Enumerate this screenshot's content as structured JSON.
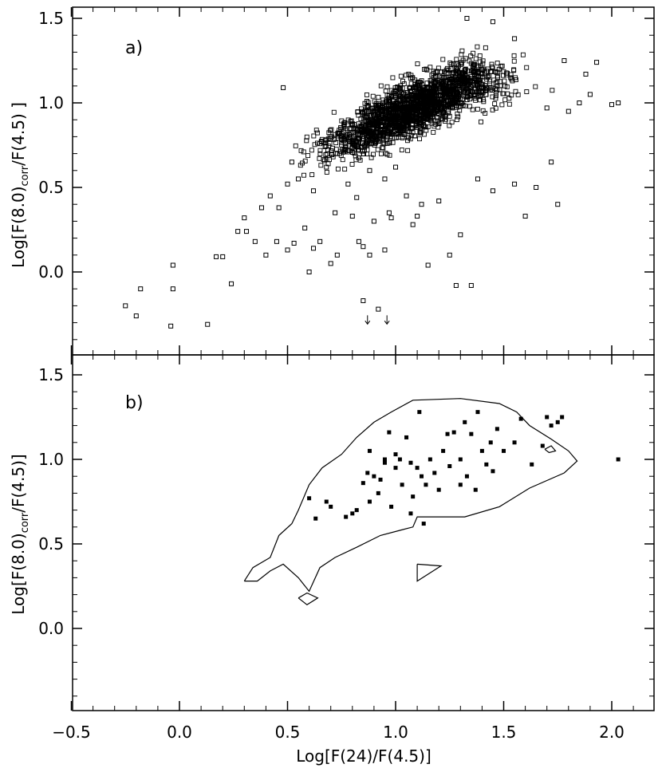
{
  "chart_data": [
    {
      "type": "scatter",
      "panel": "a)",
      "ylabel_main": "Log[F(8.0)",
      "ylabel_sub": "corr",
      "ylabel_rest": "/F(4.5) ]",
      "xlim": [
        -0.5,
        2.2
      ],
      "ylim": [
        -0.48,
        1.58
      ],
      "xticks": [
        -0.5,
        0.0,
        0.5,
        1.0,
        1.5,
        2.0
      ],
      "xtick_labels": [
        "-0.5",
        "0.0",
        "0.5",
        "1.0",
        "1.5",
        "2.0"
      ],
      "yticks": [
        0.0,
        0.5,
        1.0,
        1.5
      ],
      "ytick_labels": [
        "0.0",
        "0.5",
        "1.0",
        "1.5"
      ],
      "marker": "open-square",
      "dense_cloud": {
        "center": [
          1.15,
          1.05
        ],
        "note": "several thousand overlapping open squares"
      },
      "points": [
        [
          -0.25,
          -0.2
        ],
        [
          -0.2,
          -0.26
        ],
        [
          -0.18,
          -0.1
        ],
        [
          -0.04,
          -0.32
        ],
        [
          -0.03,
          -0.1
        ],
        [
          -0.03,
          0.04
        ],
        [
          0.13,
          -0.31
        ],
        [
          0.17,
          0.09
        ],
        [
          0.2,
          0.09
        ],
        [
          0.24,
          -0.07
        ],
        [
          0.27,
          0.24
        ],
        [
          0.3,
          0.32
        ],
        [
          0.31,
          0.24
        ],
        [
          0.35,
          0.18
        ],
        [
          0.38,
          0.38
        ],
        [
          0.4,
          0.1
        ],
        [
          0.45,
          0.18
        ],
        [
          0.48,
          1.09
        ],
        [
          0.5,
          0.13
        ],
        [
          0.53,
          0.17
        ],
        [
          0.58,
          0.26
        ],
        [
          0.6,
          0.0
        ],
        [
          0.62,
          0.14
        ],
        [
          0.65,
          0.18
        ],
        [
          0.7,
          0.05
        ],
        [
          0.73,
          0.1
        ],
        [
          0.8,
          0.33
        ],
        [
          0.83,
          0.18
        ],
        [
          0.85,
          0.15
        ],
        [
          0.88,
          0.1
        ],
        [
          0.9,
          0.3
        ],
        [
          0.95,
          0.13
        ],
        [
          0.97,
          0.35
        ],
        [
          0.98,
          0.32
        ],
        [
          1.05,
          0.45
        ],
        [
          1.08,
          0.28
        ],
        [
          1.1,
          0.33
        ],
        [
          1.12,
          0.4
        ],
        [
          1.15,
          0.04
        ],
        [
          1.2,
          0.42
        ],
        [
          1.25,
          0.1
        ],
        [
          1.28,
          -0.08
        ],
        [
          1.3,
          0.22
        ],
        [
          1.35,
          -0.08
        ],
        [
          1.38,
          0.55
        ],
        [
          1.45,
          0.48
        ],
        [
          1.55,
          0.52
        ],
        [
          1.6,
          0.33
        ],
        [
          1.65,
          0.5
        ],
        [
          1.72,
          0.65
        ],
        [
          1.75,
          0.4
        ],
        [
          1.8,
          0.95
        ],
        [
          1.85,
          1.0
        ],
        [
          1.9,
          1.05
        ],
        [
          2.0,
          0.99
        ],
        [
          2.03,
          1.0
        ],
        [
          1.93,
          1.24
        ],
        [
          1.88,
          1.17
        ],
        [
          1.45,
          1.48
        ],
        [
          1.33,
          1.5
        ],
        [
          1.55,
          1.38
        ],
        [
          0.85,
          -0.17
        ],
        [
          0.92,
          -0.22
        ],
        [
          1.78,
          1.25
        ],
        [
          1.7,
          0.97
        ],
        [
          0.55,
          0.55
        ],
        [
          0.62,
          0.48
        ],
        [
          0.68,
          0.62
        ],
        [
          0.72,
          0.35
        ],
        [
          0.78,
          0.52
        ],
        [
          0.82,
          0.44
        ],
        [
          0.88,
          0.6
        ],
        [
          0.95,
          0.55
        ],
        [
          1.0,
          0.62
        ],
        [
          0.42,
          0.45
        ],
        [
          0.46,
          0.38
        ],
        [
          0.5,
          0.52
        ],
        [
          0.52,
          0.65
        ]
      ],
      "upper_limit_arrows": [
        [
          0.87,
          -0.28
        ],
        [
          0.96,
          -0.28
        ]
      ]
    },
    {
      "type": "scatter",
      "panel": "b)",
      "xlabel": "Log[F(24)/F(4.5)]",
      "ylabel_main": "Log[F(8.0)",
      "ylabel_sub": "corr",
      "ylabel_rest": "/F(4.5)]",
      "xlim": [
        -0.5,
        2.2
      ],
      "ylim": [
        -0.48,
        1.58
      ],
      "xticks": [
        -0.5,
        0.0,
        0.5,
        1.0,
        1.5,
        2.0
      ],
      "xtick_labels": [
        "−0.5",
        "0.0",
        "0.5",
        "1.0",
        "1.5",
        "2.0"
      ],
      "yticks": [
        0.0,
        0.5,
        1.0,
        1.5
      ],
      "ytick_labels": [
        "0.0",
        "0.5",
        "1.0",
        "1.5"
      ],
      "marker": "filled-square",
      "points": [
        [
          0.6,
          0.77
        ],
        [
          0.63,
          0.65
        ],
        [
          0.68,
          0.75
        ],
        [
          0.7,
          0.72
        ],
        [
          0.8,
          0.68
        ],
        [
          0.82,
          0.7
        ],
        [
          0.85,
          0.86
        ],
        [
          0.87,
          0.92
        ],
        [
          0.88,
          0.75
        ],
        [
          0.9,
          0.9
        ],
        [
          0.92,
          0.8
        ],
        [
          0.93,
          0.88
        ],
        [
          0.95,
          0.98
        ],
        [
          0.97,
          1.16
        ],
        [
          0.98,
          0.72
        ],
        [
          1.0,
          1.03
        ],
        [
          1.02,
          1.0
        ],
        [
          1.03,
          0.85
        ],
        [
          1.05,
          1.13
        ],
        [
          1.07,
          0.98
        ],
        [
          1.08,
          0.78
        ],
        [
          1.1,
          0.95
        ],
        [
          1.11,
          1.28
        ],
        [
          1.12,
          0.9
        ],
        [
          1.14,
          0.85
        ],
        [
          1.16,
          1.0
        ],
        [
          1.18,
          0.92
        ],
        [
          1.2,
          0.82
        ],
        [
          1.22,
          1.05
        ],
        [
          1.25,
          0.96
        ],
        [
          1.27,
          1.16
        ],
        [
          1.3,
          1.0
        ],
        [
          1.32,
          1.22
        ],
        [
          1.33,
          0.9
        ],
        [
          1.35,
          1.15
        ],
        [
          1.37,
          0.82
        ],
        [
          1.4,
          1.05
        ],
        [
          1.42,
          0.97
        ],
        [
          1.44,
          1.1
        ],
        [
          1.45,
          0.93
        ],
        [
          1.47,
          1.18
        ],
        [
          1.5,
          1.05
        ],
        [
          1.55,
          1.1
        ],
        [
          1.58,
          1.24
        ],
        [
          1.63,
          0.97
        ],
        [
          1.68,
          1.08
        ],
        [
          1.7,
          1.25
        ],
        [
          1.72,
          1.2
        ],
        [
          1.75,
          1.22
        ],
        [
          1.77,
          1.25
        ],
        [
          2.03,
          1.0
        ],
        [
          0.95,
          1.0
        ],
        [
          1.0,
          0.95
        ],
        [
          0.88,
          1.05
        ],
        [
          1.13,
          0.62
        ],
        [
          1.07,
          0.68
        ],
        [
          0.77,
          0.66
        ],
        [
          1.38,
          1.28
        ],
        [
          1.3,
          0.85
        ],
        [
          1.24,
          1.15
        ]
      ],
      "contour_main": [
        [
          0.3,
          0.28
        ],
        [
          0.34,
          0.36
        ],
        [
          0.42,
          0.42
        ],
        [
          0.46,
          0.55
        ],
        [
          0.52,
          0.62
        ],
        [
          0.55,
          0.7
        ],
        [
          0.6,
          0.85
        ],
        [
          0.66,
          0.95
        ],
        [
          0.75,
          1.03
        ],
        [
          0.82,
          1.13
        ],
        [
          0.9,
          1.22
        ],
        [
          0.98,
          1.28
        ],
        [
          1.08,
          1.35
        ],
        [
          1.3,
          1.36
        ],
        [
          1.48,
          1.33
        ],
        [
          1.56,
          1.28
        ],
        [
          1.62,
          1.2
        ],
        [
          1.72,
          1.12
        ],
        [
          1.8,
          1.05
        ],
        [
          1.84,
          0.99
        ],
        [
          1.78,
          0.92
        ],
        [
          1.62,
          0.83
        ],
        [
          1.48,
          0.72
        ],
        [
          1.32,
          0.66
        ],
        [
          1.2,
          0.66
        ],
        [
          1.1,
          0.66
        ],
        [
          1.08,
          0.6
        ],
        [
          1.02,
          0.58
        ],
        [
          0.93,
          0.55
        ],
        [
          0.82,
          0.48
        ],
        [
          0.72,
          0.42
        ],
        [
          0.65,
          0.36
        ],
        [
          0.6,
          0.22
        ],
        [
          0.55,
          0.3
        ],
        [
          0.48,
          0.38
        ],
        [
          0.42,
          0.34
        ],
        [
          0.36,
          0.28
        ],
        [
          0.3,
          0.28
        ]
      ],
      "contour_islands": [
        [
          [
            1.1,
            0.38
          ],
          [
            1.21,
            0.37
          ],
          [
            1.1,
            0.28
          ],
          [
            1.1,
            0.38
          ]
        ],
        [
          [
            0.55,
            0.18
          ],
          [
            0.59,
            0.21
          ],
          [
            0.64,
            0.18
          ],
          [
            0.59,
            0.14
          ],
          [
            0.55,
            0.18
          ]
        ],
        [
          [
            1.69,
            1.06
          ],
          [
            1.72,
            1.08
          ],
          [
            1.74,
            1.05
          ],
          [
            1.71,
            1.04
          ],
          [
            1.69,
            1.06
          ]
        ]
      ]
    }
  ]
}
